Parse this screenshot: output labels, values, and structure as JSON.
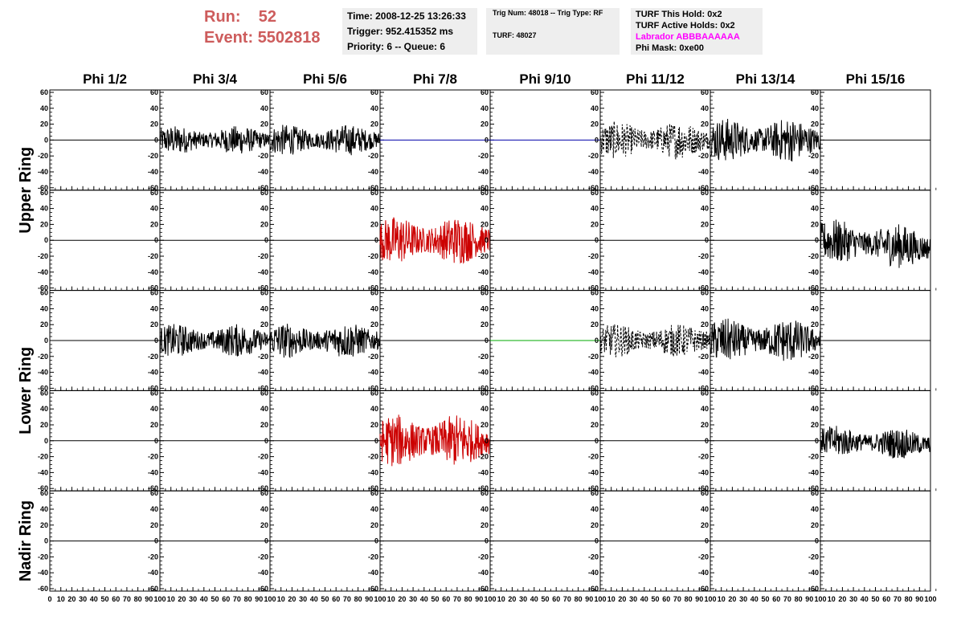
{
  "header": {
    "run_label": "Run:",
    "run_value": "52",
    "event_label": "Event:",
    "event_value": "5502818"
  },
  "info_time": {
    "time": "Time: 2008-12-25 13:26:33",
    "trigger": "Trigger: 952.415352 ms",
    "priority": "Priority: 6 -- Queue: 6"
  },
  "info_trig": {
    "trig": "Trig Num: 48018 -- Trig Type: RF",
    "turf": "TURF: 48027"
  },
  "info_turf": {
    "this_hold": "TURF This Hold: 0x2",
    "active_holds": "TURF Active Holds: 0x2",
    "labrador": "Labrador ABBBAAAAAA",
    "phi_mask": "Phi Mask: 0xe00"
  },
  "colors": {
    "header_red": "#cd5c5c",
    "magenta": "#ff00ff",
    "trace_black": "#000000",
    "trace_red": "#cc0000",
    "trace_blue": "#0000aa",
    "trace_green": "#00aa00"
  },
  "chart_data": {
    "type": "line",
    "columns": [
      "Phi 1/2",
      "Phi 3/4",
      "Phi 5/6",
      "Phi 7/8",
      "Phi 9/10",
      "Phi 11/12",
      "Phi 13/14",
      "Phi 15/16"
    ],
    "ring_labels": [
      "Upper Ring",
      "Lower Ring",
      "Nadir Ring"
    ],
    "xlim": [
      0,
      100
    ],
    "ylim": [
      -60,
      60
    ],
    "y_ticks": [
      -60,
      -40,
      -20,
      0,
      20,
      40,
      60
    ],
    "y_tick_labels": [
      "-60",
      "-40",
      "-20",
      "0",
      "20",
      "40",
      "60"
    ],
    "x_ticks": [
      0,
      10,
      20,
      30,
      40,
      50,
      60,
      70,
      80,
      90,
      100
    ],
    "x_tick_labels": [
      "0",
      "10",
      "20",
      "30",
      "40",
      "50",
      "60",
      "70",
      "80",
      "90",
      "100"
    ],
    "grid": false,
    "panels": [
      {
        "row": 0,
        "col": 0,
        "style": "flat",
        "color": "#000000",
        "amp": 0
      },
      {
        "row": 0,
        "col": 1,
        "style": "noise",
        "color": "#000000",
        "amp": 13
      },
      {
        "row": 0,
        "col": 2,
        "style": "noise",
        "color": "#000000",
        "amp": 14
      },
      {
        "row": 0,
        "col": 3,
        "style": "flat",
        "color": "#0000aa",
        "amp": 0
      },
      {
        "row": 0,
        "col": 4,
        "style": "flat",
        "color": "#0000aa",
        "amp": 0
      },
      {
        "row": 0,
        "col": 5,
        "style": "dashed",
        "color": "#000000",
        "amp": 17
      },
      {
        "row": 0,
        "col": 6,
        "style": "noise",
        "color": "#000000",
        "amp": 20
      },
      {
        "row": 0,
        "col": 7,
        "style": "flat",
        "color": "#000000",
        "amp": 0
      },
      {
        "row": 1,
        "col": 0,
        "style": "flat",
        "color": "#000000",
        "amp": 0
      },
      {
        "row": 1,
        "col": 1,
        "style": "flat",
        "color": "#000000",
        "amp": 0
      },
      {
        "row": 1,
        "col": 2,
        "style": "flat",
        "color": "#000000",
        "amp": 0
      },
      {
        "row": 1,
        "col": 3,
        "style": "noise",
        "color": "#cc0000",
        "amp": 22
      },
      {
        "row": 1,
        "col": 4,
        "style": "flat",
        "color": "#000000",
        "amp": 0
      },
      {
        "row": 1,
        "col": 5,
        "style": "flat",
        "color": "#000000",
        "amp": 0
      },
      {
        "row": 1,
        "col": 6,
        "style": "flat",
        "color": "#000000",
        "amp": 0
      },
      {
        "row": 1,
        "col": 7,
        "style": "noise",
        "color": "#000000",
        "amp": 20,
        "offset": -10
      },
      {
        "row": 2,
        "col": 0,
        "style": "flat",
        "color": "#000000",
        "amp": 0
      },
      {
        "row": 2,
        "col": 1,
        "style": "noise",
        "color": "#000000",
        "amp": 15
      },
      {
        "row": 2,
        "col": 2,
        "style": "noise",
        "color": "#000000",
        "amp": 16
      },
      {
        "row": 2,
        "col": 3,
        "style": "flat",
        "color": "#000000",
        "amp": 0
      },
      {
        "row": 2,
        "col": 4,
        "style": "flat",
        "color": "#00aa00",
        "amp": 0
      },
      {
        "row": 2,
        "col": 5,
        "style": "dashed",
        "color": "#000000",
        "amp": 15
      },
      {
        "row": 2,
        "col": 6,
        "style": "noise",
        "color": "#000000",
        "amp": 20
      },
      {
        "row": 2,
        "col": 7,
        "style": "flat",
        "color": "#000000",
        "amp": 0
      },
      {
        "row": 3,
        "col": 0,
        "style": "flat",
        "color": "#000000",
        "amp": 0
      },
      {
        "row": 3,
        "col": 1,
        "style": "flat",
        "color": "#000000",
        "amp": 0
      },
      {
        "row": 3,
        "col": 2,
        "style": "flat",
        "color": "#000000",
        "amp": 0
      },
      {
        "row": 3,
        "col": 3,
        "style": "noise",
        "color": "#cc0000",
        "amp": 24
      },
      {
        "row": 3,
        "col": 4,
        "style": "flat",
        "color": "#000000",
        "amp": 0
      },
      {
        "row": 3,
        "col": 5,
        "style": "flat",
        "color": "#000000",
        "amp": 0
      },
      {
        "row": 3,
        "col": 6,
        "style": "flat",
        "color": "#000000",
        "amp": 0
      },
      {
        "row": 3,
        "col": 7,
        "style": "noise",
        "color": "#000000",
        "amp": 14,
        "offset": -5
      },
      {
        "row": 4,
        "col": 0,
        "style": "flat",
        "color": "#000000",
        "amp": 0
      },
      {
        "row": 4,
        "col": 1,
        "style": "flat",
        "color": "#000000",
        "amp": 0
      },
      {
        "row": 4,
        "col": 2,
        "style": "flat",
        "color": "#000000",
        "amp": 0
      },
      {
        "row": 4,
        "col": 3,
        "style": "flat",
        "color": "#000000",
        "amp": 0
      },
      {
        "row": 4,
        "col": 4,
        "style": "flat",
        "color": "#000000",
        "amp": 0
      },
      {
        "row": 4,
        "col": 5,
        "style": "flat",
        "color": "#000000",
        "amp": 0
      },
      {
        "row": 4,
        "col": 6,
        "style": "flat",
        "color": "#000000",
        "amp": 0
      },
      {
        "row": 4,
        "col": 7,
        "style": "flat",
        "color": "#000000",
        "amp": 0
      }
    ]
  }
}
